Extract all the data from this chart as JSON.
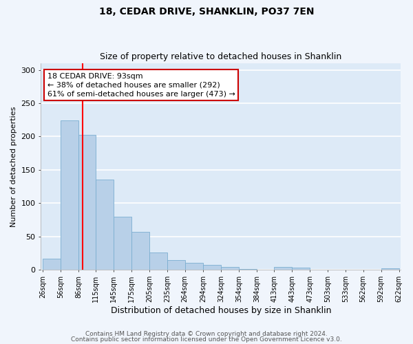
{
  "title": "18, CEDAR DRIVE, SHANKLIN, PO37 7EN",
  "subtitle": "Size of property relative to detached houses in Shanklin",
  "xlabel": "Distribution of detached houses by size in Shanklin",
  "ylabel": "Number of detached properties",
  "bar_color": "#b8d0e8",
  "bar_edge_color": "#7aaed0",
  "background_color": "#ddeaf7",
  "fig_background_color": "#f0f5fc",
  "grid_color": "#ffffff",
  "red_line_x": 93,
  "annotation_line1": "18 CEDAR DRIVE: 93sqm",
  "annotation_line2": "← 38% of detached houses are smaller (292)",
  "annotation_line3": "61% of semi-detached houses are larger (473) →",
  "annotation_box_color": "#cc0000",
  "footer_line1": "Contains HM Land Registry data © Crown copyright and database right 2024.",
  "footer_line2": "Contains public sector information licensed under the Open Government Licence v3.0.",
  "bin_edges": [
    26,
    56,
    86,
    115,
    145,
    175,
    205,
    235,
    264,
    294,
    324,
    354,
    384,
    413,
    443,
    473,
    503,
    533,
    562,
    592,
    622
  ],
  "bin_heights": [
    16,
    224,
    203,
    135,
    80,
    57,
    26,
    14,
    10,
    7,
    4,
    1,
    0,
    4,
    3,
    0,
    0,
    0,
    0,
    2
  ],
  "ylim": [
    0,
    310
  ],
  "yticks": [
    0,
    50,
    100,
    150,
    200,
    250,
    300
  ],
  "title_fontsize": 10,
  "subtitle_fontsize": 9,
  "xlabel_fontsize": 9,
  "ylabel_fontsize": 8,
  "tick_fontsize": 7,
  "footer_fontsize": 6.5,
  "annot_fontsize": 8
}
